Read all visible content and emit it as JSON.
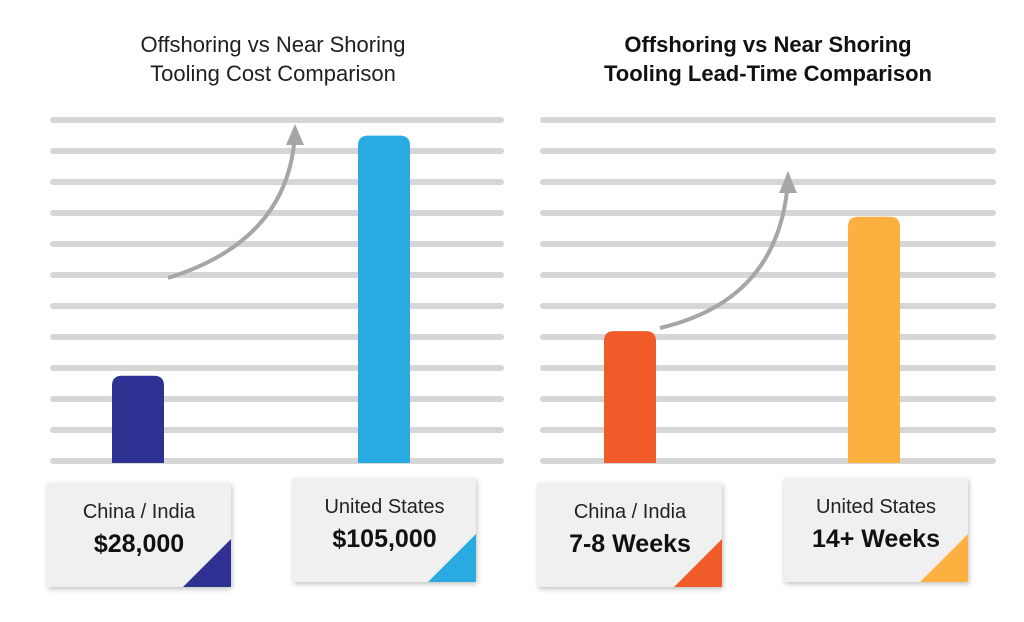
{
  "chart_data": [
    {
      "type": "bar",
      "title": "Offshoring vs Near Shoring\nTooling Cost Comparison",
      "categories": [
        "China / India",
        "United States"
      ],
      "values": [
        28000,
        105000
      ],
      "value_labels": [
        "$28,000",
        "$105,000"
      ],
      "colors": [
        "#2e3192",
        "#29abe2"
      ],
      "grid": true,
      "ylim": [
        0,
        110000
      ]
    },
    {
      "type": "bar",
      "title": "Offshoring vs Near Shoring\nTooling Lead-Time Comparison",
      "categories": [
        "China / India",
        "United States"
      ],
      "values": [
        7.5,
        14
      ],
      "value_labels": [
        "7-8 Weeks",
        "14+ Weeks"
      ],
      "colors": [
        "#f15a29",
        "#fbb040"
      ],
      "grid": true,
      "ylim": [
        0,
        19.5
      ]
    }
  ],
  "gridline_color": "#d6d6d6",
  "arrow_color": "#a6a6a6"
}
